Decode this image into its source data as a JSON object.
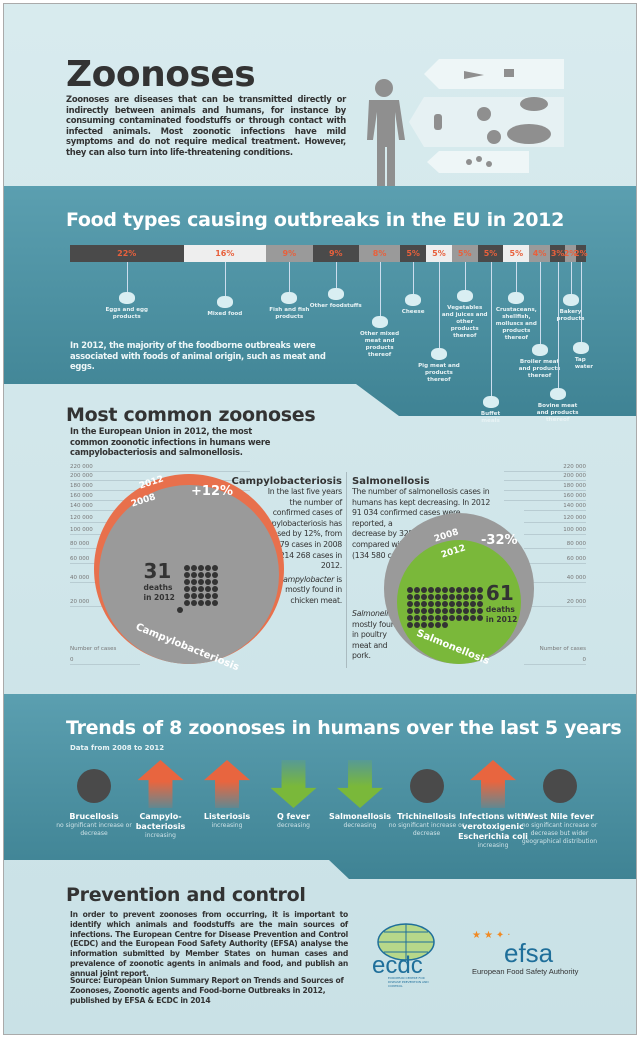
{
  "header": {
    "title": "Zoonoses",
    "intro": "Zoonoses are diseases that can be transmitted directly or indirectly between animals and humans, for instance by consuming contaminated foodstuffs or through contact with infected animals. Most zoonotic infections have mild symptoms and do not require medical treatment. However, they can also turn into life-threatening conditions."
  },
  "food": {
    "title": "Food types causing outbreaks in the EU in 2012",
    "note": "In 2012, the majority of the foodborne outbreaks were associated with foods of animal origin, such as meat and eggs."
  },
  "chart_data": {
    "type": "bar",
    "stacked": true,
    "title": "Food types causing outbreaks in the EU in 2012",
    "unit": "%",
    "categories": [
      "Eggs and egg products",
      "Mixed food",
      "Fish and fish products",
      "Other foodstuffs",
      "Other mixed meat and products thereof",
      "Cheese",
      "Pig meat and products thereof",
      "Vegetables and juices and other products thereof",
      "Buffet meals",
      "Crustaceans, shellfish, molluscs and products thereof",
      "Broiler meat and products thereof",
      "Bovine meat and products thereof",
      "Bakery products",
      "Tap water"
    ],
    "values": [
      22,
      16,
      9,
      9,
      8,
      5,
      5,
      5,
      5,
      5,
      4,
      3,
      2,
      2
    ],
    "labels": [
      "22%",
      "16%",
      "9%",
      "9%",
      "8%",
      "5%",
      "5%",
      "5%",
      "5%",
      "5%",
      "4%",
      "3%",
      "2%",
      "2%"
    ],
    "segment_colors": [
      "#4a4a4a",
      "#eeeeee",
      "#9a9a9a",
      "#4a4a4a",
      "#9a9a9a",
      "#4a4a4a",
      "#eeeeee",
      "#9a9a9a",
      "#4a4a4a",
      "#eeeeee",
      "#9a9a9a",
      "#4a4a4a",
      "#9a9a9a",
      "#4a4a4a"
    ],
    "label_color": "#e8603c"
  },
  "common": {
    "title": "Most common zoonoses",
    "intro": "In the European Union in 2012, the most common zoonotic infections in humans were campylobacteriosis and salmonellosis.",
    "axis_ticks": [
      "220 000",
      "200 000",
      "180 000",
      "160 000",
      "140 000",
      "120 000",
      "100 000",
      "80 000",
      "60 000",
      "40 000",
      "20 000",
      "0"
    ],
    "axis_values": [
      220000,
      200000,
      180000,
      160000,
      140000,
      120000,
      100000,
      80000,
      60000,
      40000,
      20000,
      0
    ],
    "axis_label": "Number of cases",
    "campy": {
      "name": "Campylobacteriosis",
      "heading": "Campylobacteriosis",
      "text": "In the last five years the number of confirmed cases of campylobacteriosis has increased by 12%, from 190 579 cases in 2008 to 214 268 cases in 2012.",
      "note_italic": "Campylobacter",
      "note": " is mostly found in chicken meat.",
      "cases_2008": 190579,
      "cases_2012": 214268,
      "change": "+12%",
      "year_a": "2012",
      "year_b": "2008",
      "deaths": 31,
      "deaths_label": "31",
      "deaths_text": "deaths",
      "deaths_year": "in 2012",
      "color_2012": "#e8704c",
      "color_2008": "#9a9a9a"
    },
    "salm": {
      "name": "Salmonellosis",
      "heading": "Salmonellosis",
      "text": "The number of salmonellosis cases in humans has kept decreasing. In 2012 91 034 confirmed cases were reported, a decrease by 32% compared with 2008 (134 580 cases).",
      "note_italic": "Salmonella",
      "note": " is mostly found in poultry meat and pork.",
      "cases_2008": 134580,
      "cases_2012": 91034,
      "change": "-32%",
      "year_a": "2008",
      "year_b": "2012",
      "deaths": 61,
      "deaths_label": "61",
      "deaths_text": "deaths",
      "deaths_year": "in 2012",
      "color_2012": "#7ab83a",
      "color_2008": "#9a9a9a"
    }
  },
  "trends": {
    "title": "Trends of 8 zoonoses in humans over the last 5 years",
    "subtitle": "Data from 2008 to 2012",
    "items": [
      {
        "name": "Brucellosis",
        "trend": "none",
        "status": "no significant increase or decrease"
      },
      {
        "name": "Campylo-bacteriosis",
        "trend": "up",
        "status": "increasing"
      },
      {
        "name": "Listeriosis",
        "trend": "up",
        "status": "increasing"
      },
      {
        "name": "Q fever",
        "trend": "down",
        "status": "decreasing"
      },
      {
        "name": "Salmonellosis",
        "trend": "down",
        "status": "decreasing"
      },
      {
        "name": "Trichinellosis",
        "trend": "none",
        "status": "no significant increase or decrease"
      },
      {
        "name": "Infections with verotoxigenic Escherichia coli",
        "trend": "up",
        "status": "increasing"
      },
      {
        "name": "West Nile fever",
        "trend": "none",
        "status": "no significant increase or decrease but wider geographical distribution"
      }
    ],
    "colors": {
      "up": "#e8653f",
      "down": "#7ab83a",
      "none": "#4a4a4a"
    }
  },
  "prevention": {
    "title": "Prevention and control",
    "text": "In order to prevent zoonoses from occurring, it is important to identify which animals and foodstuffs are the main sources of infections. The European Centre for Disease Prevention and Control (ECDC) and the European Food Safety Authority (EFSA) analyse the information submitted by Member States on human cases and prevalence of zoonotic agents in animals and food, and publish an annual joint report.",
    "source": "Source: European Union Summary Report on Trends and Sources of Zoonoses, Zoonotic agents and Food-borne Outbreaks in 2012, published by EFSA & ECDC in 2014",
    "ecdc_logo": "ecdc",
    "ecdc_sub": "EUROPEAN CENTRE FOR DISEASE PREVENTION AND CONTROL",
    "efsa_logo": "efsa",
    "efsa_sub": "European Food Safety Authority"
  }
}
